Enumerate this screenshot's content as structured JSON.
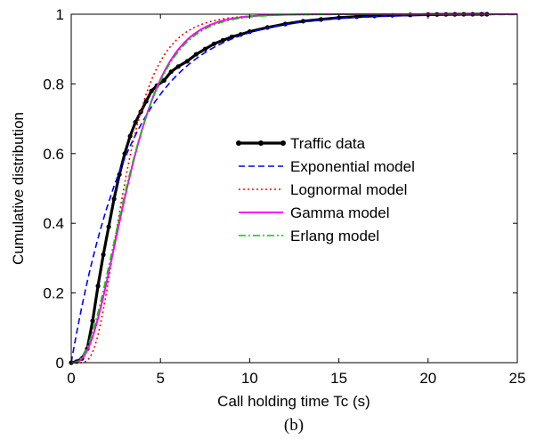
{
  "chart_data": {
    "type": "line",
    "title": "",
    "caption": "(b)",
    "xlabel": "Call holding time Tc (s)",
    "ylabel": "Cumulative distribution",
    "xlim": [
      0,
      25
    ],
    "ylim": [
      0,
      1
    ],
    "xticks": [
      0,
      5,
      10,
      15,
      20,
      25
    ],
    "yticks": [
      0,
      0.2,
      0.4,
      0.6,
      0.8,
      1
    ],
    "xtick_labels": [
      "0",
      "5",
      "10",
      "15",
      "20",
      "25"
    ],
    "ytick_labels": [
      "0",
      "0.2",
      "0.4",
      "0.6",
      "0.8",
      "1"
    ],
    "grid": false,
    "legend_position": "center-right",
    "series": [
      {
        "name": "Traffic data",
        "color": "#000000",
        "style": "solid-markers",
        "x": [
          0,
          0.3,
          0.6,
          0.9,
          1.2,
          1.5,
          1.8,
          2.1,
          2.4,
          2.7,
          3.0,
          3.3,
          3.6,
          3.9,
          4.2,
          4.5,
          4.8,
          5.2,
          5.6,
          6.0,
          6.5,
          7.0,
          7.5,
          8.0,
          8.5,
          9.0,
          9.5,
          10.0,
          11.0,
          12.0,
          13.0,
          14.0,
          15.0,
          16.0,
          17.0,
          18.0,
          19.0,
          20.0,
          20.5,
          21.0,
          21.5,
          22.0,
          22.5,
          23.0,
          23.3
        ],
        "y": [
          0,
          0.003,
          0.012,
          0.04,
          0.12,
          0.22,
          0.31,
          0.39,
          0.47,
          0.54,
          0.6,
          0.65,
          0.69,
          0.72,
          0.75,
          0.78,
          0.795,
          0.81,
          0.835,
          0.85,
          0.865,
          0.885,
          0.9,
          0.915,
          0.925,
          0.935,
          0.942,
          0.95,
          0.962,
          0.972,
          0.98,
          0.985,
          0.99,
          0.993,
          0.995,
          0.997,
          0.998,
          0.999,
          0.9993,
          0.9995,
          0.9997,
          0.9998,
          0.9999,
          1.0,
          1.0
        ]
      },
      {
        "name": "Exponential model",
        "color": "#0000ff",
        "style": "dashed",
        "model": "exponential",
        "params": {
          "mean": 3.4
        }
      },
      {
        "name": "Lognormal model",
        "color": "#ff0000",
        "style": "dotted",
        "model": "lognormal",
        "params": {
          "mu": 1.08,
          "sigma": 0.48
        }
      },
      {
        "name": "Gamma model",
        "color": "#ff00ff",
        "style": "solid",
        "model": "gamma",
        "params": {
          "k": 3.3,
          "theta": 1.05
        }
      },
      {
        "name": "Erlang model",
        "color": "#00cc00",
        "style": "dashdot",
        "model": "erlang",
        "params": {
          "k": 3,
          "theta": 1.15
        }
      }
    ]
  }
}
